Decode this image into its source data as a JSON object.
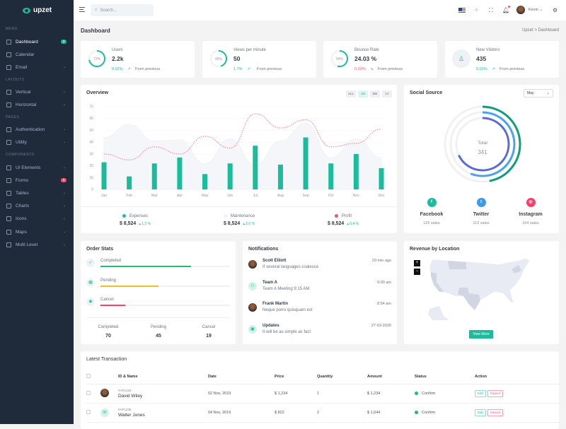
{
  "brand": {
    "name": "upzet"
  },
  "sidebar": {
    "sections": [
      "MENU",
      "LAYOUTS",
      "PAGES",
      "COMPONENTS"
    ],
    "items": [
      {
        "label": "Dashboard",
        "badge": "3",
        "badge_color": "#1abc9c",
        "active": true
      },
      {
        "label": "Calendar"
      },
      {
        "label": "Email",
        "chevron": true
      },
      {
        "label": "Vertical",
        "chevron": true
      },
      {
        "label": "Horizontal",
        "chevron": true
      },
      {
        "label": "Authentication",
        "chevron": true
      },
      {
        "label": "Utility",
        "chevron": true
      },
      {
        "label": "UI Elements",
        "chevron": true
      },
      {
        "label": "Forms",
        "badge": "8",
        "badge_color": "#f1556c"
      },
      {
        "label": "Tables",
        "chevron": true
      },
      {
        "label": "Charts",
        "chevron": true
      },
      {
        "label": "Icons",
        "chevron": true
      },
      {
        "label": "Maps",
        "chevron": true
      },
      {
        "label": "Multi Level",
        "chevron": true
      }
    ]
  },
  "topbar": {
    "search_placeholder": "Search...",
    "user": "Kevin"
  },
  "page": {
    "title": "Dashboard",
    "breadcrumb": [
      "Upzet",
      "Dashboard"
    ],
    "separator": ">"
  },
  "stats": [
    {
      "label": "Users",
      "value": "2.2k",
      "ring": "72%",
      "ring_level": 0.72,
      "change": "0.02%",
      "dir": "up",
      "from": "From previous"
    },
    {
      "label": "Views per minute",
      "value": "50",
      "ring": "45%",
      "ring_level": 0.45,
      "change": "1.7%",
      "dir": "up",
      "from": "From previous"
    },
    {
      "label": "Bounce Rate",
      "value": "24.03 %",
      "ring": "54%",
      "ring_level": 0.54,
      "change": "0.01%",
      "dir": "down",
      "from": "From previous"
    },
    {
      "label": "New Visitors",
      "value": "435",
      "change": "0.01%",
      "dir": "up",
      "from": "From previous"
    }
  ],
  "overview": {
    "title": "Overview",
    "ranges": [
      "ALL",
      "1M",
      "6M",
      "1Y"
    ],
    "active_range": "1M",
    "legend": [
      {
        "name": "Expenses",
        "value": "$ 8,524",
        "change": "1.2 %",
        "color": "#1abc9c"
      },
      {
        "name": "Maintenance",
        "value": "$ 8,524",
        "change": "2.0 %",
        "color": "#eef0f4"
      },
      {
        "name": "Profit",
        "value": "$ 8,524",
        "change": "0.4 %",
        "color": "#f1556c"
      }
    ]
  },
  "chart_data": {
    "type": "bar",
    "categories": [
      "Jan",
      "Feb",
      "Mar",
      "Apr",
      "May",
      "Jun",
      "Jul",
      "Aug",
      "Sep",
      "Oct",
      "Nov",
      "Dec"
    ],
    "ylim": [
      0,
      70
    ],
    "yticks": [
      0,
      10,
      20,
      30,
      40,
      50,
      60,
      70
    ],
    "grid": true,
    "series": [
      {
        "name": "Expenses",
        "type": "bar",
        "color": "#1abc9c",
        "values": [
          23,
          11,
          22,
          27,
          13,
          22,
          37,
          21,
          44,
          22,
          30,
          18
        ]
      },
      {
        "name": "Maintenance",
        "type": "area",
        "color": "#eef0f4",
        "values": [
          44,
          55,
          41,
          42,
          22,
          43,
          21,
          41,
          56,
          27,
          43,
          27
        ]
      },
      {
        "name": "Profit",
        "type": "line",
        "style": "dotted",
        "color": "#f1556c",
        "values": [
          30,
          25,
          36,
          30,
          45,
          35,
          64,
          52,
          59,
          36,
          39,
          51
        ]
      }
    ]
  },
  "social": {
    "title": "Social Source",
    "select": "May",
    "total_label": "Total",
    "total": "341",
    "ring_levels": [
      0.47,
      0.56,
      0.68
    ],
    "ring_colors": [
      "#0f9d7a",
      "#4aa3f0",
      "#5b6bd6"
    ],
    "items": [
      {
        "name": "Facebook",
        "sales": "125 sales",
        "color": "#1abc9c",
        "icon": "f"
      },
      {
        "name": "Twitter",
        "sales": "112 sales",
        "color": "#3b99f0",
        "icon": "t"
      },
      {
        "name": "Instagram",
        "sales": "104 sales",
        "color": "#f1416c",
        "icon": "◎"
      }
    ]
  },
  "order_stats": {
    "title": "Order Stats",
    "bars": [
      {
        "label": "Completed",
        "level": 0.7,
        "color": "#1dbf73"
      },
      {
        "label": "Pending",
        "level": 0.45,
        "color": "#f7b924"
      },
      {
        "label": "Cancel",
        "level": 0.19,
        "color": "#f1416c"
      }
    ],
    "summary": [
      {
        "label": "Completed",
        "value": "70"
      },
      {
        "label": "Pending",
        "value": "45"
      },
      {
        "label": "Cancel",
        "value": "19"
      }
    ]
  },
  "notifications": {
    "title": "Notifications",
    "items": [
      {
        "name": "Scott Elliott",
        "message": "If several languages coalesce",
        "time": "20 min ago",
        "avatar": "photo"
      },
      {
        "name": "Team A",
        "message": "Team A Meeting 9:15 AM",
        "time": "9:00 am",
        "avatar": "icon"
      },
      {
        "name": "Frank Martin",
        "message": "Neque porro quisquam est",
        "time": "8:54 am",
        "avatar": "photo"
      },
      {
        "name": "Updates",
        "message": "It will be as simple as fact",
        "time": "27-03-2020",
        "avatar": "icon"
      }
    ]
  },
  "revenue": {
    "title": "Revenue by Location",
    "zoom_in": "+",
    "zoom_out": "−",
    "button": "View More"
  },
  "transactions": {
    "title": "Latest Transaction",
    "columns": [
      "ID & Name",
      "Date",
      "Price",
      "Quantity",
      "Amount",
      "Status",
      "Action"
    ],
    "rows": [
      {
        "id": "#AP1234",
        "name": "David Wiley",
        "date": "02 Nov, 2019",
        "price": "$ 1,234",
        "qty": "1",
        "amount": "$ 1,234",
        "status": "Confirm",
        "avatar": "photo"
      },
      {
        "id": "#AP1235",
        "name": "Walter Jones",
        "date": "04 Nov, 2019",
        "price": "$ 822",
        "qty": "2",
        "amount": "$ 1,644",
        "status": "Confirm",
        "avatar": "W"
      }
    ],
    "edit": "Edit",
    "cancel": "Cancel"
  }
}
